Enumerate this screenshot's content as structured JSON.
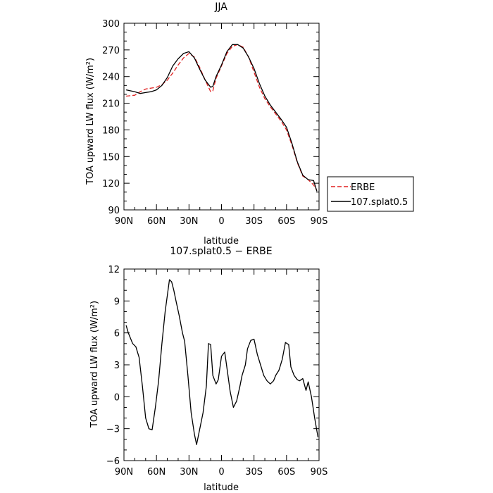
{
  "chart_data": [
    {
      "type": "line",
      "title": "JJA",
      "xlabel": "latitude",
      "ylabel": "TOA upward LW flux (W/m²)",
      "xlim": [
        -90,
        90
      ],
      "ylim": [
        90,
        300
      ],
      "xticks": [
        -90,
        -60,
        -30,
        0,
        30,
        60,
        90
      ],
      "xtick_labels": [
        "90N",
        "60N",
        "30N",
        "0",
        "30S",
        "60S",
        "90S"
      ],
      "yticks": [
        90,
        120,
        150,
        180,
        210,
        240,
        270,
        300
      ],
      "ytick_labels": [
        "90",
        "120",
        "150",
        "180",
        "210",
        "240",
        "270",
        "300"
      ],
      "grid": false,
      "legend_position": "outside-right",
      "series": [
        {
          "name": "ERBE",
          "color": "#e02020",
          "dash": "dashed",
          "x": [
            -88,
            -80,
            -75,
            -70,
            -65,
            -60,
            -55,
            -50,
            -45,
            -40,
            -35,
            -30,
            -25,
            -20,
            -15,
            -10,
            -8,
            -5,
            0,
            5,
            10,
            15,
            20,
            25,
            30,
            35,
            40,
            45,
            50,
            55,
            60,
            65,
            70,
            75,
            80,
            85,
            88
          ],
          "y": [
            218,
            219,
            223,
            226,
            227,
            228,
            231,
            236,
            244,
            253,
            261,
            266,
            262,
            250,
            236,
            223,
            224,
            238,
            252,
            266,
            274,
            276,
            273,
            262,
            245,
            228,
            215,
            206,
            198,
            190,
            180,
            163,
            143,
            128,
            124,
            118,
            112
          ]
        },
        {
          "name": "107.splat0.5",
          "color": "#000000",
          "dash": "solid",
          "x": [
            -88,
            -80,
            -75,
            -70,
            -65,
            -60,
            -55,
            -50,
            -45,
            -40,
            -35,
            -30,
            -25,
            -20,
            -15,
            -10,
            -8,
            -5,
            0,
            5,
            10,
            15,
            20,
            25,
            30,
            35,
            40,
            45,
            50,
            55,
            60,
            65,
            70,
            75,
            80,
            85,
            88
          ],
          "y": [
            225,
            223,
            221,
            222,
            223,
            225,
            230,
            239,
            252,
            260,
            266,
            268,
            261,
            248,
            236,
            228,
            229,
            240,
            253,
            268,
            276,
            276,
            272,
            262,
            249,
            232,
            218,
            208,
            200,
            192,
            183,
            165,
            144,
            129,
            124,
            123,
            111
          ]
        }
      ]
    },
    {
      "type": "line",
      "title": "107.splat0.5 − ERBE",
      "xlabel": "latitude",
      "ylabel": "TOA upward LW flux (W/m²)",
      "xlim": [
        -90,
        90
      ],
      "ylim": [
        -6,
        12
      ],
      "xticks": [
        -90,
        -60,
        -30,
        0,
        30,
        60,
        90
      ],
      "xtick_labels": [
        "90N",
        "60N",
        "30N",
        "0",
        "30S",
        "60S",
        "90S"
      ],
      "yticks": [
        -6,
        -3,
        0,
        3,
        6,
        9,
        12
      ],
      "ytick_labels": [
        "−6",
        "−3",
        "0",
        "3",
        "6",
        "9",
        "12"
      ],
      "grid": false,
      "series": [
        {
          "name": "",
          "color": "#000000",
          "dash": "solid",
          "x": [
            -88,
            -86,
            -82,
            -79,
            -76,
            -73,
            -70,
            -67,
            -64,
            -61,
            -58,
            -55,
            -52,
            -48,
            -46,
            -44,
            -42,
            -39,
            -36,
            -34,
            -31,
            -28,
            -25,
            -23,
            -20,
            -17,
            -14,
            -12,
            -10,
            -8,
            -5,
            -3,
            0,
            3,
            6,
            8,
            11,
            14,
            17,
            19,
            22,
            24,
            27,
            30,
            33,
            36,
            39,
            42,
            45,
            48,
            50,
            53,
            56,
            59,
            62,
            64,
            67,
            70,
            72,
            75,
            78,
            80,
            83,
            86,
            89
          ],
          "y": [
            6.7,
            6.0,
            5.0,
            4.7,
            3.7,
            1.0,
            -2.0,
            -3.0,
            -3.1,
            -1.0,
            1.5,
            5.0,
            8.0,
            11.0,
            10.8,
            10.0,
            9.0,
            7.6,
            6.0,
            5.2,
            2.0,
            -1.5,
            -3.5,
            -4.5,
            -3.0,
            -1.5,
            1.0,
            5.0,
            4.9,
            2.0,
            1.2,
            1.6,
            3.8,
            4.2,
            2.0,
            0.5,
            -1.0,
            -0.4,
            1.0,
            2.0,
            3.0,
            4.5,
            5.3,
            5.4,
            4.0,
            3.0,
            2.0,
            1.5,
            1.2,
            1.5,
            2.0,
            2.5,
            3.5,
            5.1,
            4.9,
            2.8,
            2.0,
            1.6,
            1.5,
            1.7,
            0.6,
            1.4,
            0.0,
            -2.0,
            -3.8
          ]
        }
      ]
    }
  ]
}
